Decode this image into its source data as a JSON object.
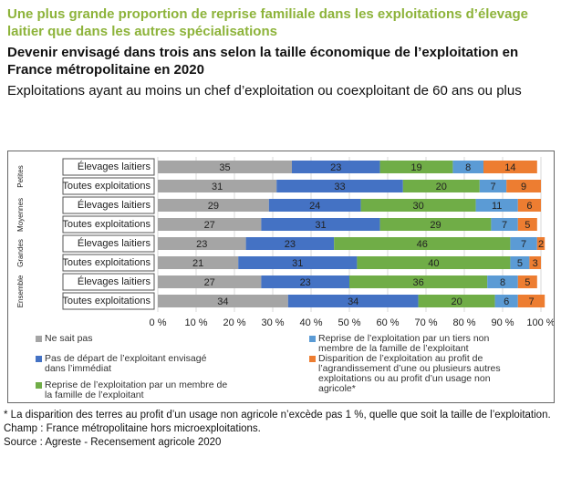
{
  "chart_data": {
    "type": "stacked-bar-horizontal",
    "title": "Une plus grande proportion de reprise familiale dans les exploitations d’élevage laitier que dans les autres spécialisations",
    "subtitle": "Devenir envisagé dans trois ans selon la taille économique de l’exploitation en France métropolitaine en 2020",
    "subtitle2": "Exploitations ayant au moins un chef d’exploitation ou coexploitant de 60 ans ou plus",
    "groups": [
      "Petites",
      "Moyennes",
      "Grandes",
      "Ensemble"
    ],
    "categories": [
      "Élevages laitiers",
      "Toutes exploitations",
      "Élevages laitiers",
      "Toutes exploitations",
      "Élevages laitiers",
      "Toutes exploitations",
      "Élevages laitiers",
      "Toutes exploitations"
    ],
    "series": [
      {
        "name": "Ne sait pas",
        "color": "#a5a5a5",
        "values": [
          35,
          31,
          29,
          27,
          23,
          21,
          27,
          34
        ]
      },
      {
        "name": "Pas de départ de l’exploitant envisagé dans l’immédiat",
        "color": "#4472c4",
        "values": [
          23,
          33,
          24,
          31,
          23,
          31,
          23,
          34
        ]
      },
      {
        "name": "Reprise de l’exploitation par un membre de la famille de l’exploitant",
        "color": "#70ad47",
        "values": [
          19,
          20,
          30,
          29,
          46,
          40,
          36,
          20
        ]
      },
      {
        "name": "Reprise de l’exploitation par un tiers non membre de la famille de l’exploitant",
        "color": "#5b9bd5",
        "values": [
          8,
          7,
          11,
          7,
          7,
          5,
          8,
          6
        ]
      },
      {
        "name": "Disparition de l’exploitation au profit de l’agrandissement d’une ou plusieurs autres exploitations ou au profit d’un usage non agricole*",
        "color": "#ed7d31",
        "values": [
          14,
          9,
          6,
          5,
          2,
          3,
          5,
          7
        ]
      }
    ],
    "xlim": [
      0,
      100
    ],
    "xticks": [
      {
        "value": 0,
        "label": "0 %"
      },
      {
        "value": 10,
        "label": "10 %"
      },
      {
        "value": 20,
        "label": "20 %"
      },
      {
        "value": 30,
        "label": "30 %"
      },
      {
        "value": 40,
        "label": "40 %"
      },
      {
        "value": 50,
        "label": "50 %"
      },
      {
        "value": 60,
        "label": "60 %"
      },
      {
        "value": 70,
        "label": "70 %"
      },
      {
        "value": 80,
        "label": "80 %"
      },
      {
        "value": 90,
        "label": "90 %"
      },
      {
        "value": 100,
        "label": "100 %"
      }
    ],
    "grid": true,
    "notes": [
      "* La disparition des terres au profit d’un usage non agricole n’excède pas 1 %, quelle que soit la taille de l’exploitation.",
      "Champ : France métropolitaine hors microexploitations.",
      "Source : Agreste - Recensement agricole 2020"
    ]
  }
}
